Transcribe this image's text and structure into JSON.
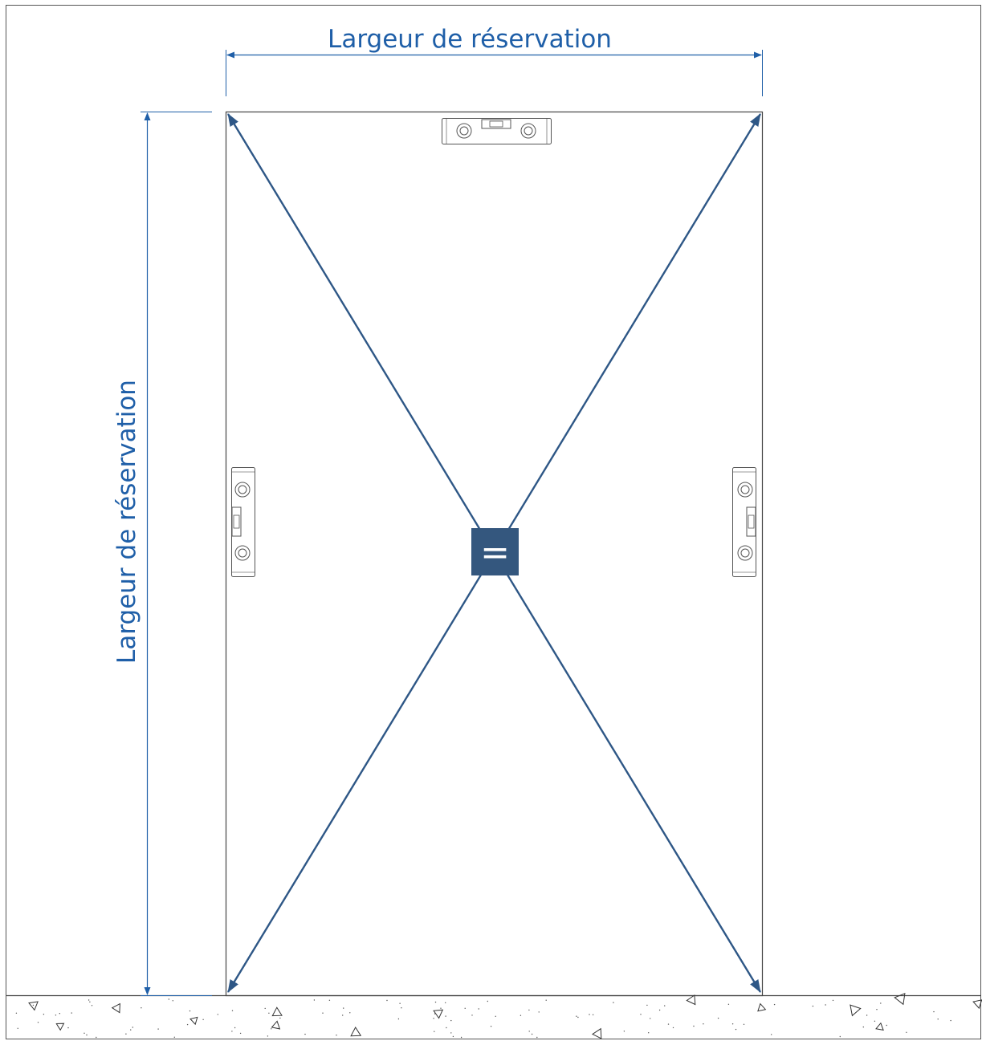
{
  "dimensions": {
    "width_label": "Largeur de réservation",
    "height_label": "Largeur de réservation"
  },
  "equality_badge": {
    "symbol": "="
  },
  "colors": {
    "dimension_blue": "#1f5fa8",
    "diagonal_blue": "#2e5786",
    "badge_fill": "#34577e",
    "outline": "#444444"
  },
  "icons": {
    "top_level": "spirit-level-icon",
    "left_level": "spirit-level-icon",
    "right_level": "spirit-level-icon"
  }
}
